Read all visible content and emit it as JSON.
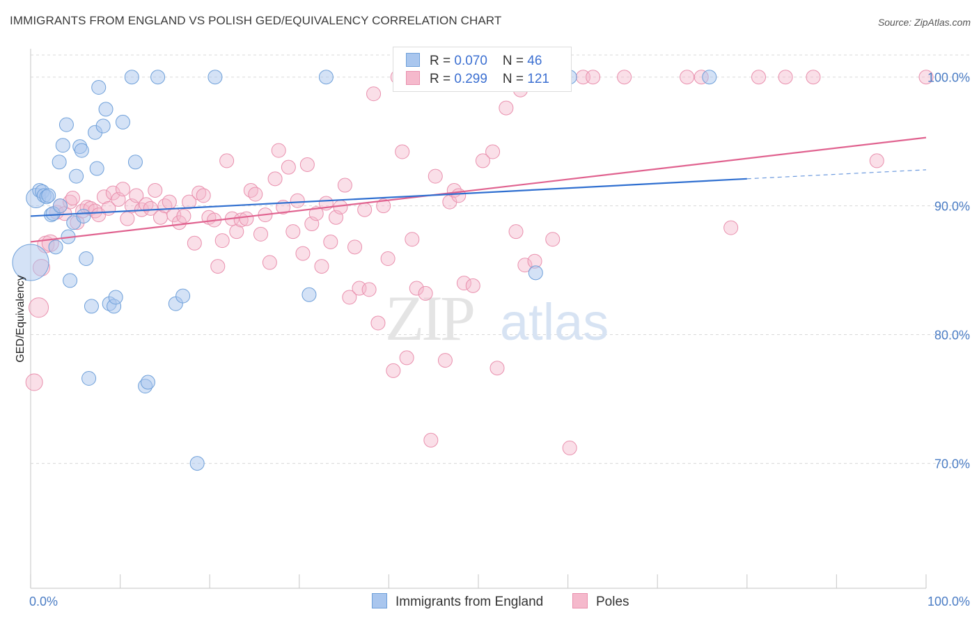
{
  "title": "IMMIGRANTS FROM ENGLAND VS POLISH GED/EQUIVALENCY CORRELATION CHART",
  "source": "Source: ZipAtlas.com",
  "watermark": {
    "zip": "ZIP",
    "atlas": "atlas"
  },
  "legend": {
    "rows": [
      {
        "r_label": "R = ",
        "r_value": "0.070",
        "n_label": "N = ",
        "n_value": "46"
      },
      {
        "r_label": "R = ",
        "r_value": "0.299",
        "n_label": "N = ",
        "n_value": "121"
      }
    ]
  },
  "bottom_legend": [
    "Immigrants from England",
    "Poles"
  ],
  "colors": {
    "blue_fill": "#a9c6ee",
    "blue_stroke": "#6d9fd9",
    "blue_line": "#2f6fd0",
    "pink_fill": "#f5b9cc",
    "pink_stroke": "#e98fad",
    "pink_line": "#e0628f",
    "tick_text": "#4a7cc4",
    "grid": "#d8d8d8"
  },
  "chart_data": {
    "type": "scatter",
    "title": "IMMIGRANTS FROM ENGLAND VS POLISH GED/EQUIVALENCY CORRELATION CHART",
    "xlabel": "",
    "ylabel": "GED/Equivalency",
    "xlim": [
      0,
      100
    ],
    "ylim": [
      60.3,
      102.2
    ],
    "x_tick_labels": [
      "0.0%",
      "100.0%"
    ],
    "y_ticks": [
      70,
      80,
      90,
      100
    ],
    "y_tick_labels": [
      "70.0%",
      "80.0%",
      "90.0%",
      "100.0%"
    ],
    "grid": "horizontal dashed",
    "legend_placement": "top-center",
    "series": [
      {
        "name": "Immigrants from England",
        "r": 0.07,
        "n": 46,
        "trend": {
          "x0": 0,
          "y0": 89.2,
          "x1": 80,
          "y1": 92.1,
          "dashed_to_x": 100,
          "dashed_to_y": 92.8
        },
        "points": [
          [
            0,
            85.6,
            26
          ],
          [
            0.6,
            90.6,
            14
          ],
          [
            1.0,
            91.2,
            10
          ],
          [
            1.3,
            91.1,
            10
          ],
          [
            1.5,
            90.8,
            10
          ],
          [
            1.8,
            90.7,
            10
          ],
          [
            2.0,
            90.8,
            10
          ],
          [
            2.3,
            89.3,
            10
          ],
          [
            2.5,
            89.4,
            10
          ],
          [
            2.8,
            86.8,
            10
          ],
          [
            3.3,
            90.0,
            10
          ],
          [
            3.2,
            93.4,
            10
          ],
          [
            3.6,
            94.7,
            10
          ],
          [
            4.0,
            96.3,
            10
          ],
          [
            4.2,
            87.6,
            10
          ],
          [
            4.4,
            84.2,
            10
          ],
          [
            4.8,
            88.7,
            10
          ],
          [
            5.1,
            92.3,
            10
          ],
          [
            5.5,
            94.6,
            10
          ],
          [
            5.7,
            94.3,
            10
          ],
          [
            5.9,
            89.2,
            10
          ],
          [
            6.2,
            85.9,
            10
          ],
          [
            6.5,
            76.6,
            10
          ],
          [
            6.8,
            82.2,
            10
          ],
          [
            7.2,
            95.7,
            10
          ],
          [
            7.4,
            92.9,
            10
          ],
          [
            7.6,
            99.2,
            10
          ],
          [
            8.1,
            96.2,
            10
          ],
          [
            8.4,
            97.5,
            10
          ],
          [
            8.8,
            82.4,
            10
          ],
          [
            9.3,
            82.2,
            10
          ],
          [
            9.5,
            82.9,
            10
          ],
          [
            10.3,
            96.5,
            10
          ],
          [
            11.3,
            100.0,
            10
          ],
          [
            11.7,
            93.4,
            10
          ],
          [
            12.8,
            76.0,
            10
          ],
          [
            13.1,
            76.3,
            10
          ],
          [
            14.2,
            100.0,
            10
          ],
          [
            16.2,
            82.4,
            10
          ],
          [
            17.0,
            83.0,
            10
          ],
          [
            18.6,
            70.0,
            10
          ],
          [
            20.6,
            100.0,
            10
          ],
          [
            31.1,
            83.1,
            10
          ],
          [
            33.0,
            100.0,
            10
          ],
          [
            60.2,
            100.0,
            10
          ],
          [
            75.8,
            100.0,
            10
          ],
          [
            56.4,
            84.8,
            10
          ]
        ]
      },
      {
        "name": "Poles",
        "r": 0.299,
        "n": 121,
        "trend": {
          "x0": 0,
          "y0": 87.2,
          "x1": 100,
          "y1": 95.3
        },
        "points": [
          [
            0.4,
            76.3,
            12
          ],
          [
            0.9,
            82.1,
            14
          ],
          [
            1.2,
            85.2,
            12
          ],
          [
            1.7,
            87.0,
            12
          ],
          [
            2.2,
            87.1,
            12
          ],
          [
            2.9,
            89.5,
            10
          ],
          [
            3.3,
            90.0,
            10
          ],
          [
            3.8,
            89.4,
            10
          ],
          [
            4.4,
            90.3,
            10
          ],
          [
            4.7,
            90.6,
            10
          ],
          [
            5.2,
            88.7,
            10
          ],
          [
            5.8,
            89.6,
            10
          ],
          [
            6.3,
            89.9,
            10
          ],
          [
            6.7,
            89.8,
            10
          ],
          [
            7.2,
            89.6,
            10
          ],
          [
            7.6,
            89.3,
            10
          ],
          [
            8.2,
            90.7,
            10
          ],
          [
            8.7,
            89.8,
            10
          ],
          [
            9.2,
            91.0,
            10
          ],
          [
            9.8,
            90.5,
            10
          ],
          [
            10.3,
            91.3,
            10
          ],
          [
            10.8,
            89.0,
            10
          ],
          [
            11.3,
            90.0,
            10
          ],
          [
            11.8,
            90.8,
            10
          ],
          [
            12.4,
            89.7,
            10
          ],
          [
            12.9,
            90.1,
            10
          ],
          [
            13.4,
            89.8,
            10
          ],
          [
            13.9,
            91.2,
            10
          ],
          [
            14.5,
            89.1,
            10
          ],
          [
            15.0,
            90.0,
            10
          ],
          [
            15.5,
            90.3,
            10
          ],
          [
            16.0,
            89.3,
            10
          ],
          [
            16.6,
            88.7,
            10
          ],
          [
            17.1,
            89.2,
            10
          ],
          [
            17.7,
            90.3,
            10
          ],
          [
            18.3,
            87.1,
            10
          ],
          [
            18.8,
            91.0,
            10
          ],
          [
            19.3,
            90.8,
            10
          ],
          [
            19.9,
            89.1,
            10
          ],
          [
            20.5,
            88.9,
            10
          ],
          [
            20.9,
            85.3,
            10
          ],
          [
            21.4,
            87.3,
            10
          ],
          [
            21.9,
            93.5,
            10
          ],
          [
            22.5,
            89.0,
            10
          ],
          [
            23.0,
            88.0,
            10
          ],
          [
            23.5,
            88.9,
            10
          ],
          [
            24.1,
            89.0,
            10
          ],
          [
            24.6,
            91.2,
            10
          ],
          [
            25.1,
            90.9,
            10
          ],
          [
            25.7,
            87.8,
            10
          ],
          [
            26.2,
            89.3,
            10
          ],
          [
            26.7,
            85.6,
            10
          ],
          [
            27.3,
            92.1,
            10
          ],
          [
            27.7,
            94.3,
            10
          ],
          [
            28.2,
            89.9,
            10
          ],
          [
            28.8,
            93.0,
            10
          ],
          [
            29.3,
            88.0,
            10
          ],
          [
            29.8,
            90.4,
            10
          ],
          [
            30.4,
            86.3,
            10
          ],
          [
            30.9,
            93.2,
            10
          ],
          [
            31.4,
            88.6,
            10
          ],
          [
            31.9,
            89.4,
            10
          ],
          [
            32.5,
            85.3,
            10
          ],
          [
            33.0,
            90.2,
            10
          ],
          [
            33.5,
            87.2,
            10
          ],
          [
            34.1,
            89.1,
            10
          ],
          [
            34.6,
            89.9,
            10
          ],
          [
            35.1,
            91.6,
            10
          ],
          [
            35.6,
            82.9,
            10
          ],
          [
            36.2,
            86.8,
            10
          ],
          [
            36.7,
            83.6,
            10
          ],
          [
            37.3,
            89.7,
            10
          ],
          [
            37.8,
            83.5,
            10
          ],
          [
            38.3,
            98.7,
            10
          ],
          [
            38.8,
            80.9,
            10
          ],
          [
            39.4,
            90.0,
            10
          ],
          [
            39.9,
            85.9,
            10
          ],
          [
            40.5,
            77.2,
            10
          ],
          [
            41.0,
            100.0,
            10
          ],
          [
            41.5,
            94.2,
            10
          ],
          [
            42.0,
            78.2,
            10
          ],
          [
            42.6,
            87.4,
            10
          ],
          [
            43.1,
            83.6,
            10
          ],
          [
            43.6,
            100.0,
            10
          ],
          [
            44.1,
            83.2,
            10
          ],
          [
            44.7,
            71.8,
            10
          ],
          [
            45.2,
            92.3,
            10
          ],
          [
            45.7,
            100.0,
            10
          ],
          [
            46.3,
            78.0,
            10
          ],
          [
            46.8,
            90.3,
            10
          ],
          [
            47.3,
            91.2,
            10
          ],
          [
            47.8,
            90.8,
            10
          ],
          [
            48.4,
            84.0,
            10
          ],
          [
            49.0,
            100.0,
            10
          ],
          [
            49.4,
            83.8,
            10
          ],
          [
            50.0,
            100.0,
            10
          ],
          [
            50.5,
            93.5,
            10
          ],
          [
            51.0,
            100.0,
            10
          ],
          [
            51.6,
            94.2,
            10
          ],
          [
            52.1,
            77.4,
            10
          ],
          [
            52.6,
            100.0,
            10
          ],
          [
            53.1,
            97.6,
            10
          ],
          [
            53.7,
            100.0,
            10
          ],
          [
            54.2,
            88.0,
            10
          ],
          [
            54.7,
            99.0,
            10
          ],
          [
            55.2,
            85.4,
            10
          ],
          [
            55.8,
            100.0,
            10
          ],
          [
            56.3,
            85.7,
            10
          ],
          [
            58.3,
            87.4,
            10
          ],
          [
            60.2,
            71.2,
            10
          ],
          [
            61.7,
            100.0,
            10
          ],
          [
            62.8,
            100.0,
            10
          ],
          [
            66.3,
            100.0,
            10
          ],
          [
            73.3,
            100.0,
            10
          ],
          [
            74.9,
            100.0,
            10
          ],
          [
            78.2,
            88.3,
            10
          ],
          [
            81.3,
            100.0,
            10
          ],
          [
            84.3,
            100.0,
            10
          ],
          [
            87.4,
            100.0,
            10
          ],
          [
            94.5,
            93.5,
            10
          ],
          [
            100.0,
            100.0,
            10
          ]
        ]
      }
    ]
  }
}
